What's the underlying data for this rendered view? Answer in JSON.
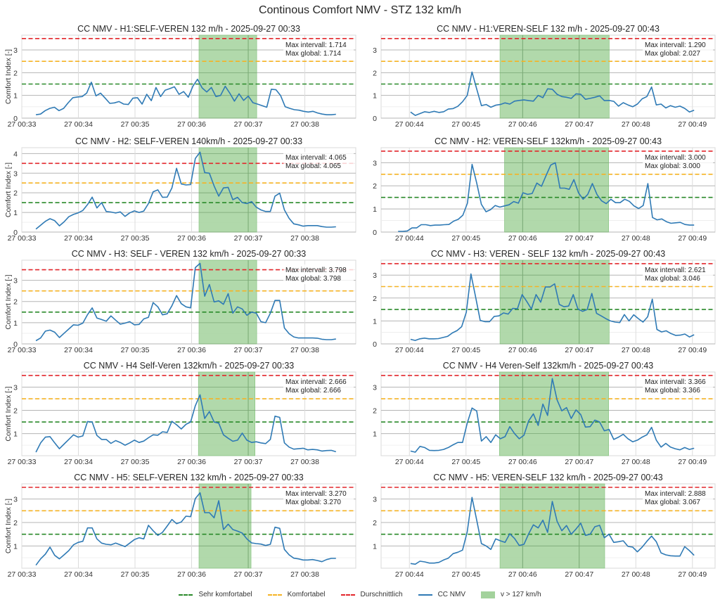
{
  "suptitle": "Continous Comfort NMV - STZ 132 km/h",
  "legend": [
    {
      "label": "Sehr komfortabel",
      "style": "dashed",
      "color": "#2ca02c"
    },
    {
      "label": "Komfortabel",
      "style": "dashed",
      "color": "#f5b324"
    },
    {
      "label": "Durschnittlich",
      "style": "dashed",
      "color": "#e3262b"
    },
    {
      "label": "CC NMV",
      "style": "solid",
      "color": "#2f7ab5"
    },
    {
      "label": "v > 127 km/h",
      "style": "patch",
      "color": "#a8d5a2"
    }
  ],
  "colors": {
    "line": "#2f7ab5",
    "sehr_komfortabel": "#2a8a2a",
    "komfortabel": "#f5b324",
    "durchschnittlich": "#e3262b",
    "highlight": "#a3d29c"
  },
  "thresholds": {
    "sehr_komfortabel": 1.5,
    "komfortabel": 2.5,
    "durchschnittlich": 3.5
  },
  "chart_data": [
    {
      "type": "line",
      "title": "CC NMV - H1:SELF-VEREN 132 m/h - 2025-09-27 00:33",
      "ylabel": "Comfort Index [-]",
      "xlabel": "",
      "xlim_min": [
        33.0,
        38.9
      ],
      "ylim": [
        0,
        3.65
      ],
      "yticks": [
        0,
        1,
        2,
        3
      ],
      "xtick_labels": [
        "27 00:33",
        "27 00:34",
        "27 00:35",
        "27 00:36",
        "27 00:37",
        "27 00:38"
      ],
      "xtick_min": [
        33,
        34,
        35,
        36,
        37,
        38
      ],
      "highlight_min": [
        36.13,
        37.15
      ],
      "annotation": [
        "Max intervall: 1.714",
        "Max global: 1.714"
      ],
      "x_start_min": 33.25,
      "x_end_min": 38.55,
      "values": [
        0.15,
        0.18,
        0.33,
        0.43,
        0.48,
        0.33,
        0.43,
        0.68,
        0.9,
        0.93,
        0.95,
        1.1,
        1.58,
        0.98,
        1.1,
        0.88,
        0.65,
        0.67,
        0.73,
        0.62,
        0.6,
        0.88,
        0.9,
        0.62,
        1.05,
        0.77,
        1.35,
        0.95,
        1.23,
        1.3,
        1.38,
        1.05,
        1.17,
        0.92,
        1.4,
        1.71,
        1.33,
        1.15,
        1.35,
        0.95,
        1.0,
        1.4,
        1.1,
        0.75,
        1.07,
        0.78,
        0.97,
        0.68,
        0.62,
        0.55,
        0.48,
        1.27,
        1.25,
        1.0,
        0.5,
        0.43,
        0.37,
        0.35,
        0.3,
        0.27,
        0.3,
        0.23,
        0.18,
        0.15,
        0.15,
        0.17
      ]
    },
    {
      "type": "line",
      "title": "CC NMV - H1:VEREN-SELF 132 m/h - 2025-09-27 00:43",
      "ylabel": "",
      "xlabel": "",
      "xlim_min": [
        43.5,
        49.4
      ],
      "ylim": [
        0,
        3.65
      ],
      "yticks": [
        0,
        1,
        2,
        3
      ],
      "xtick_labels": [
        "27 00:44",
        "27 00:45",
        "27 00:46",
        "27 00:47",
        "27 00:48",
        "27 00:49"
      ],
      "xtick_min": [
        44,
        45,
        46,
        47,
        48,
        49
      ],
      "highlight_min": [
        45.6,
        47.53
      ],
      "annotation": [
        "Max intervall: 1.290",
        "Max global: 2.027"
      ],
      "x_start_min": 44.02,
      "x_end_min": 49.03,
      "values": [
        0.27,
        0.12,
        0.2,
        0.28,
        0.25,
        0.3,
        0.25,
        0.28,
        0.4,
        0.42,
        0.52,
        0.72,
        1.0,
        2.03,
        1.28,
        0.55,
        0.6,
        0.48,
        0.57,
        0.6,
        0.67,
        0.62,
        0.75,
        0.78,
        0.8,
        0.77,
        0.75,
        1.0,
        0.9,
        1.29,
        1.27,
        1.05,
        0.95,
        0.92,
        0.87,
        1.07,
        1.05,
        0.83,
        0.87,
        0.92,
        0.98,
        0.77,
        0.78,
        0.74,
        0.53,
        0.68,
        0.58,
        0.5,
        0.62,
        0.85,
        0.95,
        1.37,
        0.58,
        0.62,
        0.45,
        0.55,
        0.48,
        0.53,
        0.43,
        0.27,
        0.35
      ]
    },
    {
      "type": "line",
      "title": "CC NMV - H2: SELF-VEREN 140km/h - 2025-09-27 00:33",
      "ylabel": "Comfort Index [-]",
      "xlabel": "",
      "xlim_min": [
        33.0,
        38.9
      ],
      "ylim": [
        0,
        4.3
      ],
      "yticks": [
        0,
        1,
        2,
        3,
        4
      ],
      "xtick_labels": [
        "27 00:33",
        "27 00:34",
        "27 00:35",
        "27 00:36",
        "27 00:37",
        "27 00:38"
      ],
      "xtick_min": [
        33,
        34,
        35,
        36,
        37,
        38
      ],
      "highlight_min": [
        36.13,
        37.15
      ],
      "annotation": [
        "Max intervall: 4.065",
        "Max global: 4.065"
      ],
      "x_start_min": 33.25,
      "x_end_min": 38.55,
      "values": [
        0.15,
        0.35,
        0.55,
        0.68,
        0.58,
        0.32,
        0.52,
        0.78,
        0.9,
        0.98,
        1.1,
        1.4,
        1.78,
        1.23,
        1.5,
        1.05,
        1.02,
        0.97,
        1.03,
        0.8,
        0.98,
        1.08,
        1.0,
        1.07,
        1.45,
        2.05,
        2.15,
        1.77,
        1.78,
        2.25,
        3.25,
        2.45,
        2.4,
        2.42,
        3.75,
        4.07,
        3.03,
        3.0,
        2.35,
        1.83,
        2.25,
        2.28,
        1.65,
        1.77,
        1.5,
        1.45,
        1.55,
        1.27,
        1.13,
        1.05,
        1.05,
        1.83,
        1.98,
        1.13,
        0.7,
        0.42,
        0.37,
        0.3,
        0.33,
        0.33,
        0.33,
        0.28,
        0.25,
        0.25,
        0.27
      ]
    },
    {
      "type": "line",
      "title": "CC NMV - H2: VEREN-SELF 132km/h - 2025-09-27 00:43",
      "ylabel": "",
      "xlabel": "",
      "xlim_min": [
        43.5,
        49.4
      ],
      "ylim": [
        0,
        3.65
      ],
      "yticks": [
        0,
        1,
        2,
        3
      ],
      "xtick_labels": [
        "27 00:44",
        "27 00:45",
        "27 00:46",
        "27 00:47",
        "27 00:48",
        "27 00:49"
      ],
      "xtick_min": [
        44,
        45,
        46,
        47,
        48,
        49
      ],
      "highlight_min": [
        45.68,
        47.52
      ],
      "annotation": [
        "Max intervall: 3.000",
        "Max global: 3.000"
      ],
      "x_start_min": 43.8,
      "x_end_min": 49.03,
      "values": [
        0.03,
        0.03,
        0.05,
        0.18,
        0.18,
        0.32,
        0.32,
        0.28,
        0.3,
        0.3,
        0.32,
        0.33,
        0.47,
        0.55,
        0.73,
        1.25,
        2.93,
        2.12,
        1.2,
        0.88,
        0.97,
        1.15,
        1.08,
        1.13,
        1.18,
        1.32,
        1.25,
        1.7,
        1.63,
        1.67,
        2.12,
        1.98,
        2.45,
        2.9,
        3.0,
        1.9,
        1.9,
        1.85,
        2.27,
        1.7,
        1.42,
        1.63,
        2.1,
        1.62,
        1.35,
        1.23,
        1.42,
        1.27,
        1.27,
        1.42,
        1.33,
        1.13,
        1.02,
        1.15,
        2.1,
        0.63,
        0.53,
        0.57,
        0.45,
        0.38,
        0.4,
        0.42,
        0.33,
        0.3,
        0.3
      ]
    },
    {
      "type": "line",
      "title": "CC NMV - H3: SELF - VEREN 132 km/h - 2025-09-27 00:33",
      "ylabel": "Comfort Index [-]",
      "xlabel": "",
      "xlim_min": [
        33.0,
        38.9
      ],
      "ylim": [
        0,
        3.95
      ],
      "yticks": [
        0,
        1,
        2,
        3
      ],
      "xtick_labels": [
        "27 00:33",
        "27 00:34",
        "27 00:35",
        "27 00:36",
        "27 00:37",
        "27 00:38"
      ],
      "xtick_min": [
        33,
        34,
        35,
        36,
        37,
        38
      ],
      "highlight_min": [
        36.13,
        37.15
      ],
      "annotation": [
        "Max intervall: 3.798",
        "Max global: 3.798"
      ],
      "x_start_min": 33.25,
      "x_end_min": 38.55,
      "values": [
        0.15,
        0.28,
        0.6,
        0.65,
        0.55,
        0.3,
        0.5,
        0.7,
        0.9,
        0.88,
        0.98,
        1.38,
        1.7,
        1.22,
        1.15,
        1.07,
        1.32,
        1.12,
        0.93,
        0.98,
        1.05,
        0.9,
        0.92,
        1.18,
        1.25,
        1.95,
        1.75,
        1.37,
        1.42,
        1.8,
        2.28,
        1.9,
        1.75,
        1.7,
        3.6,
        3.8,
        2.25,
        2.8,
        1.98,
        2.03,
        1.87,
        2.37,
        1.45,
        1.75,
        1.65,
        1.35,
        1.5,
        1.45,
        1.05,
        1.0,
        1.45,
        2.05,
        2.05,
        0.75,
        0.48,
        0.33,
        0.28,
        0.28,
        0.28,
        0.28,
        0.27,
        0.22,
        0.2,
        0.2,
        0.23
      ]
    },
    {
      "type": "line",
      "title": "CC NMV - H3: VEREN - SELF 132 km/h - 2025-09-27 00:43",
      "ylabel": "",
      "xlabel": "",
      "xlim_min": [
        43.5,
        49.4
      ],
      "ylim": [
        0,
        3.65
      ],
      "yticks": [
        0,
        1,
        2,
        3
      ],
      "xtick_labels": [
        "27 00:44",
        "27 00:45",
        "27 00:46",
        "27 00:47",
        "27 00:48",
        "27 00:49"
      ],
      "xtick_min": [
        44,
        45,
        46,
        47,
        48,
        49
      ],
      "highlight_min": [
        45.6,
        47.53
      ],
      "annotation": [
        "Max intervall: 2.621",
        "Max global: 3.046"
      ],
      "x_start_min": 44.02,
      "x_end_min": 49.03,
      "values": [
        0.2,
        0.15,
        0.22,
        0.25,
        0.22,
        0.22,
        0.23,
        0.28,
        0.33,
        0.48,
        0.58,
        0.75,
        1.38,
        3.05,
        2.05,
        1.02,
        0.97,
        0.97,
        1.2,
        1.22,
        1.35,
        1.3,
        1.55,
        1.53,
        2.15,
        1.85,
        1.52,
        2.15,
        1.82,
        2.48,
        2.48,
        2.62,
        1.72,
        1.62,
        1.65,
        2.15,
        1.52,
        1.42,
        1.5,
        2.2,
        1.33,
        1.22,
        1.1,
        1.0,
        0.95,
        0.93,
        1.28,
        1.0,
        1.27,
        1.1,
        0.95,
        1.18,
        1.95,
        0.63,
        0.52,
        0.57,
        0.45,
        0.37,
        0.38,
        0.43,
        0.3,
        0.4
      ]
    },
    {
      "type": "line",
      "title": "CC NMV - H4 Self-Veren 132km/h - 2025-09-27 00:33",
      "ylabel": "Comfort Index [-]",
      "xlabel": "",
      "xlim_min": [
        33.0,
        38.9
      ],
      "ylim": [
        0.05,
        3.65
      ],
      "yticks": [
        1,
        2,
        3
      ],
      "xtick_labels": [
        "27 00:33",
        "27 00:34",
        "27 00:35",
        "27 00:36",
        "27 00:37",
        "27 00:38"
      ],
      "xtick_min": [
        33,
        34,
        35,
        36,
        37,
        38
      ],
      "highlight_min": [
        36.12,
        37.12
      ],
      "annotation": [
        "Max intervall: 2.666",
        "Max global: 2.666"
      ],
      "x_start_min": 33.25,
      "x_end_min": 38.55,
      "values": [
        0.2,
        0.6,
        0.85,
        0.87,
        0.6,
        0.35,
        0.55,
        0.75,
        0.95,
        0.85,
        0.9,
        1.52,
        1.5,
        0.92,
        0.75,
        0.75,
        0.58,
        0.7,
        0.62,
        0.5,
        0.6,
        0.72,
        0.62,
        0.68,
        0.82,
        0.95,
        0.93,
        1.08,
        1.05,
        1.53,
        1.38,
        1.2,
        1.4,
        1.5,
        2.2,
        2.67,
        1.65,
        1.95,
        1.5,
        1.45,
        0.95,
        0.8,
        0.67,
        0.72,
        1.02,
        0.72,
        0.62,
        0.65,
        0.6,
        0.57,
        0.75,
        1.75,
        1.7,
        0.6,
        0.42,
        0.33,
        0.35,
        0.37,
        0.3,
        0.32,
        0.3,
        0.25,
        0.27,
        0.28,
        0.22
      ]
    },
    {
      "type": "line",
      "title": "CC NMV - H4 Veren-Self 132km/h - 2025-09-27 00:43",
      "ylabel": "",
      "xlabel": "",
      "xlim_min": [
        43.5,
        49.4
      ],
      "ylim": [
        0.05,
        3.65
      ],
      "yticks": [
        1,
        2,
        3
      ],
      "xtick_labels": [
        "27 00:44",
        "27 00:45",
        "27 00:46",
        "27 00:47",
        "27 00:48",
        "27 00:49"
      ],
      "xtick_min": [
        44,
        45,
        46,
        47,
        48,
        49
      ],
      "highlight_min": [
        45.59,
        47.52
      ],
      "annotation": [
        "Max intervall: 3.366",
        "Max global: 3.366"
      ],
      "x_start_min": 44.02,
      "x_end_min": 49.03,
      "values": [
        0.25,
        0.2,
        0.45,
        0.4,
        0.28,
        0.27,
        0.28,
        0.32,
        0.4,
        0.52,
        0.62,
        0.62,
        1.45,
        2.1,
        1.97,
        0.68,
        0.87,
        0.62,
        0.95,
        0.78,
        0.87,
        1.3,
        1.0,
        0.78,
        0.93,
        1.55,
        1.85,
        1.35,
        2.27,
        1.78,
        3.37,
        2.45,
        1.98,
        2.12,
        1.65,
        2.02,
        1.82,
        1.28,
        1.3,
        1.58,
        1.5,
        1.12,
        1.18,
        0.75,
        0.85,
        0.97,
        0.78,
        0.65,
        0.72,
        0.85,
        0.95,
        1.27,
        0.72,
        0.42,
        0.58,
        0.42,
        0.35,
        0.3,
        0.4,
        0.32,
        0.37
      ]
    },
    {
      "type": "line",
      "title": "CC NMV - H5: SELF-VEREN 132 km/h - 2025-09-27 00:33",
      "ylabel": "Comfort Index [-]",
      "xlabel": "",
      "xlim_min": [
        33.0,
        38.9
      ],
      "ylim": [
        0.05,
        3.65
      ],
      "yticks": [
        1,
        2,
        3
      ],
      "xtick_labels": [
        "27 00:33",
        "27 00:34",
        "27 00:35",
        "27 00:36",
        "27 00:37",
        "27 00:38"
      ],
      "xtick_min": [
        33,
        34,
        35,
        36,
        37,
        38
      ],
      "highlight_min": [
        36.13,
        37.05
      ],
      "annotation": [
        "Max intervall: 3.270",
        "Max global: 3.270"
      ],
      "x_start_min": 33.25,
      "x_end_min": 38.55,
      "values": [
        0.18,
        0.45,
        0.65,
        0.95,
        0.6,
        0.45,
        0.62,
        0.8,
        1.05,
        1.15,
        1.2,
        1.77,
        1.77,
        1.3,
        1.12,
        1.07,
        1.05,
        1.12,
        1.05,
        0.97,
        1.12,
        1.27,
        1.35,
        1.3,
        1.88,
        1.65,
        1.45,
        1.58,
        1.85,
        2.13,
        1.95,
        2.02,
        2.27,
        2.25,
        3.02,
        3.27,
        2.42,
        2.42,
        2.2,
        2.93,
        1.7,
        1.93,
        1.7,
        1.63,
        1.55,
        1.3,
        1.13,
        1.1,
        1.08,
        1.02,
        1.07,
        1.8,
        1.75,
        0.85,
        0.62,
        0.48,
        0.45,
        0.4,
        0.4,
        0.42,
        0.38,
        0.33,
        0.42,
        0.47,
        0.47
      ]
    },
    {
      "type": "line",
      "title": "CC NMV - H5: VEREN-SELF 132 km/h - 2025-09-27 00:43",
      "ylabel": "",
      "xlabel": "",
      "xlim_min": [
        43.5,
        49.4
      ],
      "ylim": [
        0.05,
        3.65
      ],
      "yticks": [
        1,
        2,
        3
      ],
      "xtick_labels": [
        "27 00:44",
        "27 00:45",
        "27 00:46",
        "27 00:47",
        "27 00:48",
        "27 00:49"
      ],
      "xtick_min": [
        44,
        45,
        46,
        47,
        48,
        49
      ],
      "highlight_min": [
        45.6,
        47.45
      ],
      "annotation": [
        "Max intervall: 2.888",
        "Max global: 3.067"
      ],
      "x_start_min": 44.02,
      "x_end_min": 49.03,
      "values": [
        0.25,
        0.22,
        0.35,
        0.32,
        0.27,
        0.27,
        0.3,
        0.4,
        0.48,
        0.67,
        0.73,
        0.82,
        1.6,
        3.07,
        2.1,
        1.1,
        1.0,
        0.85,
        1.3,
        1.22,
        1.15,
        1.52,
        1.32,
        1.02,
        1.07,
        1.52,
        1.9,
        1.77,
        2.1,
        1.58,
        2.9,
        2.05,
        1.65,
        1.87,
        1.5,
        1.72,
        1.97,
        1.45,
        1.5,
        1.82,
        1.88,
        1.35,
        1.5,
        1.15,
        1.18,
        1.22,
        0.98,
        0.95,
        0.75,
        0.95,
        1.2,
        1.42,
        1.18,
        0.7,
        0.62,
        0.58,
        0.57,
        0.57,
        0.97,
        0.8,
        0.6
      ]
    }
  ]
}
